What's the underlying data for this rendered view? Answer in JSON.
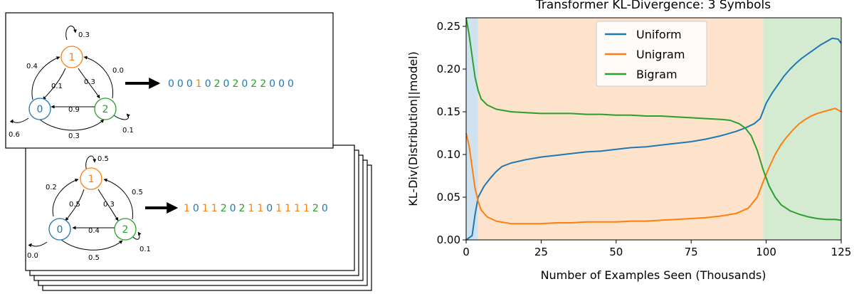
{
  "colors": {
    "state0": "#1f77b4",
    "state1": "#ff7f0e",
    "state2": "#2ca02c",
    "uniform": "#1f77b4",
    "unigram": "#ff7f0e",
    "bigram": "#2ca02c",
    "region_blue": "#cfe2f0",
    "region_orange": "#fde2cc",
    "region_green": "#d4ebd2"
  },
  "markov": {
    "top": {
      "states": [
        "0",
        "1",
        "2"
      ],
      "self_loops": {
        "s0": "0.6",
        "s1": "0.3",
        "s2": "0.1"
      },
      "transitions": {
        "s0_to_s1": "0.4",
        "s1_to_s0": "0.1",
        "s1_to_s2": "0.3",
        "s2_to_s1": "0.0",
        "s2_to_s0": "0.9",
        "s0_to_s2": "0.3"
      },
      "sequence": [
        "0",
        "0",
        "0",
        "1",
        "0",
        "2",
        "0",
        "2",
        "0",
        "2",
        "2",
        "0",
        "0",
        "0"
      ]
    },
    "bottom": {
      "states": [
        "0",
        "1",
        "2"
      ],
      "self_loops": {
        "s0": "0.0",
        "s1": "0.5",
        "s2": "0.1"
      },
      "transitions": {
        "s0_to_s1": "0.2",
        "s1_to_s0": "0.5",
        "s1_to_s2": "0.3",
        "s2_to_s1": "0.5",
        "s2_to_s0": "0.4",
        "s0_to_s2": "0.5"
      },
      "sequence": [
        "1",
        "0",
        "1",
        "1",
        "2",
        "0",
        "2",
        "1",
        "1",
        "0",
        "1",
        "1",
        "1",
        "1",
        "2",
        "0"
      ]
    }
  },
  "chart_data": {
    "type": "line",
    "title": "Transformer KL-Divergence: 3 Symbols",
    "xlabel": "Number of Examples Seen (Thousands)",
    "ylabel": "KL-Div(Distribution||model)",
    "xlim": [
      0,
      125
    ],
    "ylim": [
      0,
      0.26
    ],
    "xticks": [
      0,
      25,
      50,
      75,
      100,
      125
    ],
    "yticks": [
      0.0,
      0.05,
      0.1,
      0.15,
      0.2,
      0.25
    ],
    "xtick_labels": [
      "0",
      "25",
      "50",
      "75",
      "100",
      "125"
    ],
    "ytick_labels": [
      "0.00",
      "0.05",
      "0.10",
      "0.15",
      "0.20",
      "0.25"
    ],
    "legend_position": "top-center",
    "shaded_regions": [
      {
        "x0": 0,
        "x1": 4,
        "color_key": "region_blue"
      },
      {
        "x0": 4,
        "x1": 99,
        "color_key": "region_orange"
      },
      {
        "x0": 99,
        "x1": 125,
        "color_key": "region_green"
      }
    ],
    "series": [
      {
        "name": "Uniform",
        "color_key": "uniform",
        "points": [
          [
            0,
            0.0
          ],
          [
            2,
            0.005
          ],
          [
            3,
            0.03
          ],
          [
            4,
            0.05
          ],
          [
            6,
            0.063
          ],
          [
            8,
            0.072
          ],
          [
            10,
            0.08
          ],
          [
            12,
            0.086
          ],
          [
            15,
            0.09
          ],
          [
            20,
            0.094
          ],
          [
            25,
            0.097
          ],
          [
            30,
            0.099
          ],
          [
            35,
            0.101
          ],
          [
            40,
            0.103
          ],
          [
            45,
            0.104
          ],
          [
            50,
            0.106
          ],
          [
            55,
            0.108
          ],
          [
            60,
            0.109
          ],
          [
            65,
            0.111
          ],
          [
            70,
            0.113
          ],
          [
            75,
            0.115
          ],
          [
            80,
            0.118
          ],
          [
            85,
            0.122
          ],
          [
            90,
            0.127
          ],
          [
            93,
            0.131
          ],
          [
            96,
            0.136
          ],
          [
            98,
            0.142
          ],
          [
            100,
            0.16
          ],
          [
            102,
            0.172
          ],
          [
            104,
            0.182
          ],
          [
            106,
            0.192
          ],
          [
            108,
            0.2
          ],
          [
            110,
            0.207
          ],
          [
            112,
            0.213
          ],
          [
            114,
            0.218
          ],
          [
            116,
            0.223
          ],
          [
            118,
            0.228
          ],
          [
            120,
            0.232
          ],
          [
            122,
            0.236
          ],
          [
            124,
            0.235
          ],
          [
            125,
            0.23
          ]
        ]
      },
      {
        "name": "Unigram",
        "color_key": "unigram",
        "points": [
          [
            0,
            0.125
          ],
          [
            1,
            0.11
          ],
          [
            2,
            0.085
          ],
          [
            3,
            0.06
          ],
          [
            4,
            0.045
          ],
          [
            5,
            0.035
          ],
          [
            7,
            0.027
          ],
          [
            10,
            0.022
          ],
          [
            15,
            0.019
          ],
          [
            20,
            0.019
          ],
          [
            25,
            0.019
          ],
          [
            30,
            0.02
          ],
          [
            35,
            0.02
          ],
          [
            40,
            0.021
          ],
          [
            45,
            0.021
          ],
          [
            50,
            0.021
          ],
          [
            55,
            0.022
          ],
          [
            60,
            0.022
          ],
          [
            65,
            0.023
          ],
          [
            70,
            0.024
          ],
          [
            75,
            0.025
          ],
          [
            80,
            0.026
          ],
          [
            85,
            0.028
          ],
          [
            90,
            0.031
          ],
          [
            94,
            0.037
          ],
          [
            97,
            0.05
          ],
          [
            99,
            0.068
          ],
          [
            101,
            0.085
          ],
          [
            103,
            0.1
          ],
          [
            105,
            0.112
          ],
          [
            107,
            0.121
          ],
          [
            109,
            0.129
          ],
          [
            111,
            0.136
          ],
          [
            113,
            0.141
          ],
          [
            115,
            0.145
          ],
          [
            117,
            0.148
          ],
          [
            119,
            0.15
          ],
          [
            121,
            0.152
          ],
          [
            123,
            0.154
          ],
          [
            125,
            0.15
          ]
        ]
      },
      {
        "name": "Bigram",
        "color_key": "bigram",
        "points": [
          [
            0,
            0.26
          ],
          [
            1,
            0.24
          ],
          [
            2,
            0.215
          ],
          [
            3,
            0.19
          ],
          [
            4,
            0.175
          ],
          [
            5,
            0.165
          ],
          [
            7,
            0.158
          ],
          [
            10,
            0.153
          ],
          [
            15,
            0.15
          ],
          [
            20,
            0.149
          ],
          [
            25,
            0.148
          ],
          [
            30,
            0.148
          ],
          [
            35,
            0.148
          ],
          [
            40,
            0.147
          ],
          [
            45,
            0.147
          ],
          [
            50,
            0.146
          ],
          [
            55,
            0.146
          ],
          [
            60,
            0.145
          ],
          [
            65,
            0.145
          ],
          [
            70,
            0.144
          ],
          [
            75,
            0.143
          ],
          [
            80,
            0.142
          ],
          [
            85,
            0.141
          ],
          [
            88,
            0.14
          ],
          [
            91,
            0.136
          ],
          [
            93,
            0.131
          ],
          [
            95,
            0.122
          ],
          [
            97,
            0.105
          ],
          [
            99,
            0.082
          ],
          [
            101,
            0.063
          ],
          [
            103,
            0.05
          ],
          [
            105,
            0.041
          ],
          [
            108,
            0.034
          ],
          [
            111,
            0.03
          ],
          [
            114,
            0.027
          ],
          [
            117,
            0.025
          ],
          [
            120,
            0.024
          ],
          [
            123,
            0.024
          ],
          [
            125,
            0.023
          ]
        ]
      }
    ]
  }
}
